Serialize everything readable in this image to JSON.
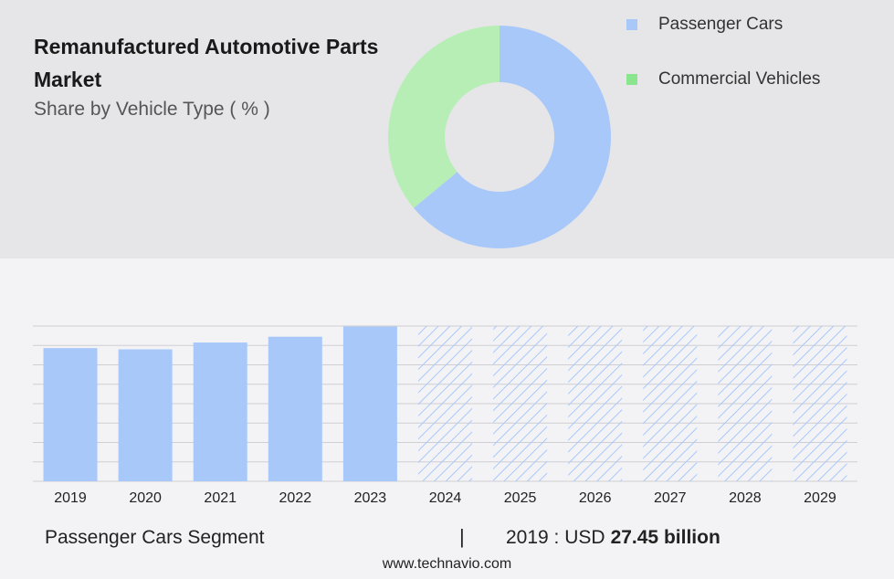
{
  "header": {
    "title": "Remanufactured Automotive Parts Market",
    "subtitle": "Share by Vehicle Type ( % )"
  },
  "legend": [
    {
      "label": "Passenger Cars",
      "color": "#a8c8fa"
    },
    {
      "label": "Commercial Vehicles",
      "color": "#8ae68e"
    }
  ],
  "chart_data": [
    {
      "type": "pie",
      "title": "Share by Vehicle Type ( % )",
      "categories": [
        "Passenger Cars",
        "Commercial Vehicles"
      ],
      "values": [
        64,
        36
      ],
      "colors": [
        "#a8c8fa",
        "#b6eeb5"
      ],
      "donut": true,
      "legend": "top-right"
    },
    {
      "type": "bar",
      "categories": [
        "2019",
        "2020",
        "2021",
        "2022",
        "2023",
        "2024",
        "2025",
        "2026",
        "2027",
        "2028",
        "2029"
      ],
      "values": [
        27.45,
        27.2,
        28.6,
        29.8,
        31.9,
        null,
        null,
        null,
        null,
        null,
        null
      ],
      "forecast_years": [
        "2024",
        "2025",
        "2026",
        "2027",
        "2028",
        "2029"
      ],
      "ylim": [
        0,
        32
      ],
      "grid": true,
      "bar_color": "#a8c8fa",
      "hatch_color": "#a8c8fa"
    }
  ],
  "footer": {
    "segment_label": "Passenger Cars Segment",
    "divider": "|",
    "year_label": "2019 : USD",
    "value": "27.45 billion",
    "site": "www.technavio.com"
  }
}
